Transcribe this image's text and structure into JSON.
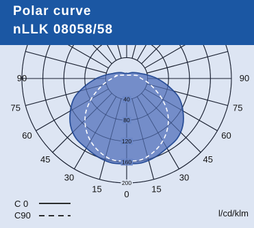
{
  "header": {
    "title_line1": "Polar curve",
    "title_line2": "nLLK 08058/58",
    "bg_color": "#1b57a3"
  },
  "chart_data": {
    "type": "polar",
    "radial_max": 200,
    "ring_values": [
      40,
      80,
      120,
      160,
      200
    ],
    "ring_labels": [
      "40",
      "80",
      "120",
      "160",
      "200"
    ],
    "angle_step_deg": 15,
    "angle_labels_left": [
      "0",
      "15",
      "30",
      "45",
      "60",
      "75",
      "90"
    ],
    "angle_labels_right": [
      "15",
      "30",
      "45",
      "60",
      "75",
      "90"
    ],
    "unit": "l/cd/klm",
    "fill_color": "#6a86c6",
    "fill_edge_color": "#2a4f98",
    "series": [
      {
        "name": "C 0",
        "style": "solid",
        "angles_deg": [
          0,
          10,
          20,
          30,
          40,
          50,
          60,
          70,
          80,
          90,
          100,
          110,
          120,
          135,
          150,
          165,
          180
        ],
        "values": [
          163,
          164,
          160,
          154,
          150,
          140,
          124,
          106,
          80,
          58,
          40,
          28,
          22,
          16,
          12,
          10,
          10
        ]
      },
      {
        "name": "C90",
        "style": "dashed",
        "angles_deg": [
          0,
          10,
          20,
          30,
          40,
          50,
          60,
          70,
          80,
          90,
          100,
          110
        ],
        "values": [
          158,
          158,
          150,
          138,
          122,
          102,
          78,
          56,
          40,
          28,
          22,
          18
        ]
      }
    ]
  },
  "legend": {
    "c0_label": "C 0",
    "c90_label": "C90"
  }
}
